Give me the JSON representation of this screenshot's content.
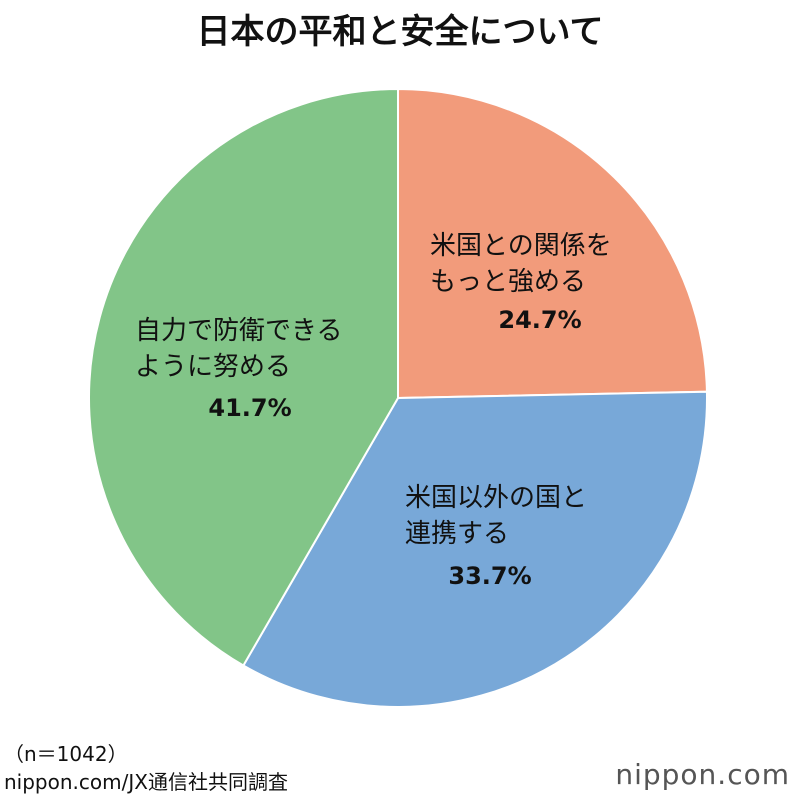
{
  "chart_data": {
    "type": "pie",
    "title": "日本の平和と安全について",
    "categories": [
      "米国との関係をもっと強める",
      "米国以外の国と連携する",
      "自力で防衛できるように努める"
    ],
    "values": [
      24.7,
      33.7,
      41.7
    ],
    "value_labels": [
      "24.7%",
      "33.7%",
      "41.7%"
    ],
    "colors": [
      "#f29b7b",
      "#78a8d8",
      "#82c588"
    ],
    "note": "（n＝1042）",
    "source": "nippon.com/JX通信社共同調査",
    "logo": "nippon.com"
  }
}
